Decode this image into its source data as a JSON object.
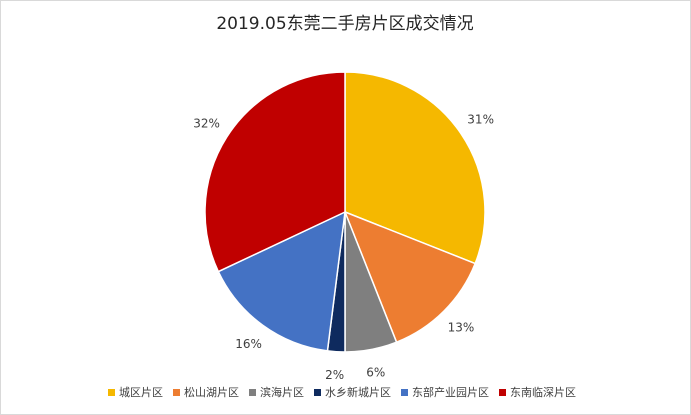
{
  "chart_data": {
    "type": "pie",
    "title": "2019.05东莞二手房片区成交情况",
    "categories": [
      "城区片区",
      "松山湖片区",
      "滨海片区",
      "水乡新城片区",
      "东部产业园片区",
      "东南临深片区"
    ],
    "values": [
      31,
      13,
      6,
      2,
      16,
      32
    ],
    "value_labels": [
      "31%",
      "13%",
      "6%",
      "2%",
      "16%",
      "32%"
    ],
    "colors": [
      "#f5b800",
      "#ed7d31",
      "#7f7f7f",
      "#0e2a5e",
      "#4472c4",
      "#c00000"
    ],
    "legend": "bottom"
  }
}
